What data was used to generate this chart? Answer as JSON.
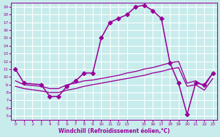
{
  "xlabel": "Windchill (Refroidissement éolien,°C)",
  "bg_color": "#c8ecec",
  "grid_color": "#ffffff",
  "line_color": "#990099",
  "x_ticks": [
    0,
    1,
    2,
    3,
    4,
    5,
    6,
    7,
    8,
    9,
    10,
    11,
    12,
    13,
    15,
    16,
    17,
    18,
    19,
    20,
    21,
    22,
    23
  ],
  "y_ticks": [
    5,
    6,
    7,
    8,
    9,
    10,
    11,
    12,
    13,
    14,
    15,
    16,
    17,
    18,
    19
  ],
  "xlim": [
    -0.5,
    23.5
  ],
  "ylim": [
    4.5,
    19.5
  ],
  "series": [
    {
      "x": [
        0,
        1,
        3,
        4,
        5,
        6,
        7,
        8,
        9,
        10,
        11,
        12,
        13,
        14,
        15,
        16,
        17,
        18,
        19,
        20,
        21,
        22,
        23
      ],
      "y": [
        11.0,
        9.2,
        9.0,
        7.5,
        7.5,
        8.8,
        9.5,
        10.5,
        10.5,
        15.0,
        17.0,
        17.5,
        18.0,
        19.0,
        19.2,
        18.5,
        17.5,
        11.8,
        9.2,
        5.2,
        9.2,
        9.0,
        10.5
      ],
      "has_marker": true,
      "markersize": 3,
      "linewidth": 1.2
    },
    {
      "x": [
        0,
        1,
        3,
        4,
        5,
        6,
        7,
        8,
        9,
        10,
        11,
        12,
        13,
        14,
        15,
        16,
        17,
        18,
        19,
        20,
        21,
        22,
        23
      ],
      "y": [
        9.5,
        9.0,
        8.8,
        8.5,
        8.5,
        9.0,
        9.2,
        9.5,
        9.6,
        9.8,
        10.0,
        10.2,
        10.5,
        10.7,
        11.0,
        11.2,
        11.5,
        11.8,
        12.0,
        9.2,
        9.5,
        8.8,
        10.5
      ],
      "has_marker": false,
      "markersize": 0,
      "linewidth": 1.0
    },
    {
      "x": [
        0,
        1,
        3,
        4,
        5,
        6,
        7,
        8,
        9,
        10,
        11,
        12,
        13,
        14,
        15,
        16,
        17,
        18,
        19,
        20,
        21,
        22,
        23
      ],
      "y": [
        8.8,
        8.5,
        8.2,
        8.0,
        8.0,
        8.3,
        8.5,
        8.8,
        9.0,
        9.2,
        9.4,
        9.6,
        9.8,
        10.0,
        10.2,
        10.5,
        10.7,
        11.0,
        11.2,
        8.8,
        9.0,
        8.3,
        9.8
      ],
      "has_marker": false,
      "markersize": 0,
      "linewidth": 1.0
    }
  ]
}
